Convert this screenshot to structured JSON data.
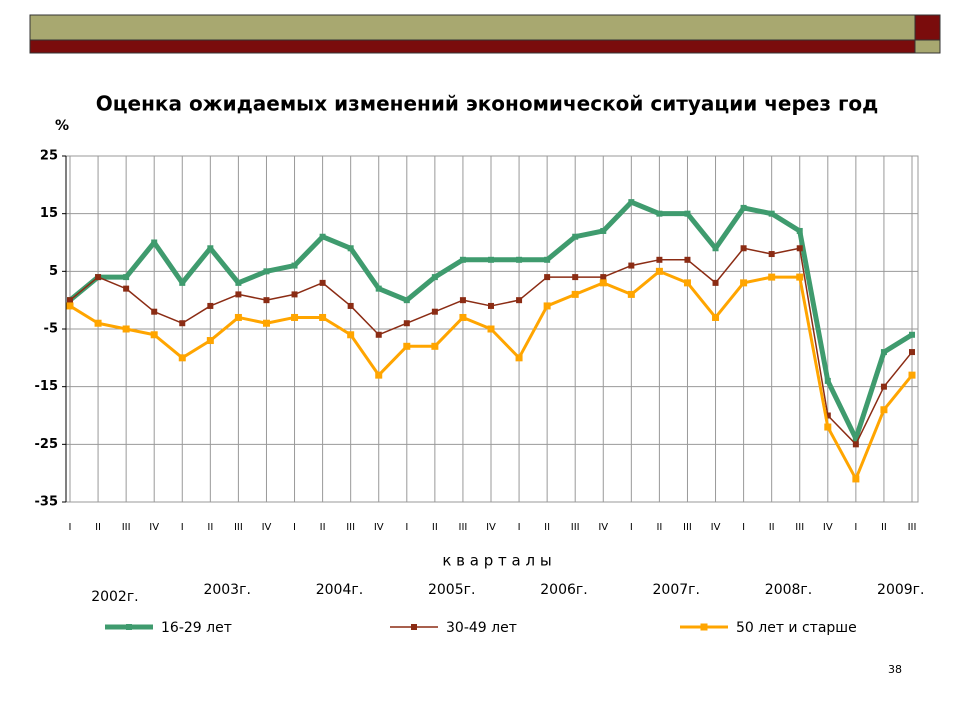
{
  "chart_data": {
    "type": "line",
    "title": "Оценка ожидаемых изменений экономической ситуации через год",
    "y_label": "%",
    "x_label": "к в а р т а л ы",
    "categories": [
      "I",
      "II",
      "III",
      "IV",
      "I",
      "II",
      "III",
      "IV",
      "I",
      "II",
      "III",
      "IV",
      "I",
      "II",
      "III",
      "IV",
      "I",
      "II",
      "III",
      "IV",
      "I",
      "II",
      "III",
      "IV",
      "I",
      "II",
      "III",
      "IV",
      "I",
      "II",
      "III"
    ],
    "year_labels": [
      "2002г.",
      "2003г.",
      "2004г.",
      "2005г.",
      "2006г.",
      "2007г.",
      "2008г.",
      "2009г."
    ],
    "series": [
      {
        "name": "16-29 лет",
        "color": "#3f9b6e",
        "values": [
          0,
          4,
          4,
          10,
          3,
          9,
          3,
          5,
          6,
          11,
          9,
          2,
          0,
          4,
          7,
          7,
          7,
          7,
          11,
          12,
          17,
          15,
          15,
          9,
          16,
          15,
          12,
          -14,
          -24,
          -9,
          -6
        ]
      },
      {
        "name": "30-49 лет",
        "color": "#8b2c14",
        "values": [
          0,
          4,
          2,
          -2,
          -4,
          -1,
          1,
          0,
          1,
          3,
          -1,
          -6,
          -4,
          -2,
          0,
          -1,
          0,
          4,
          4,
          4,
          6,
          7,
          7,
          3,
          9,
          8,
          9,
          -20,
          -25,
          -15,
          -9
        ]
      },
      {
        "name": "50 лет  и старше",
        "color": "#ffa500",
        "values": [
          -1,
          -4,
          -5,
          -6,
          -10,
          -7,
          -3,
          -4,
          -3,
          -3,
          -6,
          -13,
          -8,
          -8,
          -3,
          -5,
          -10,
          -1,
          1,
          3,
          1,
          5,
          3,
          -3,
          3,
          4,
          4,
          -22,
          -31,
          -19,
          -13
        ]
      }
    ],
    "ylim": [
      -35,
      25
    ],
    "yticks": [
      25,
      15,
      5,
      -5,
      -15,
      -25,
      -35
    ],
    "grid": true,
    "page_number": "38"
  }
}
